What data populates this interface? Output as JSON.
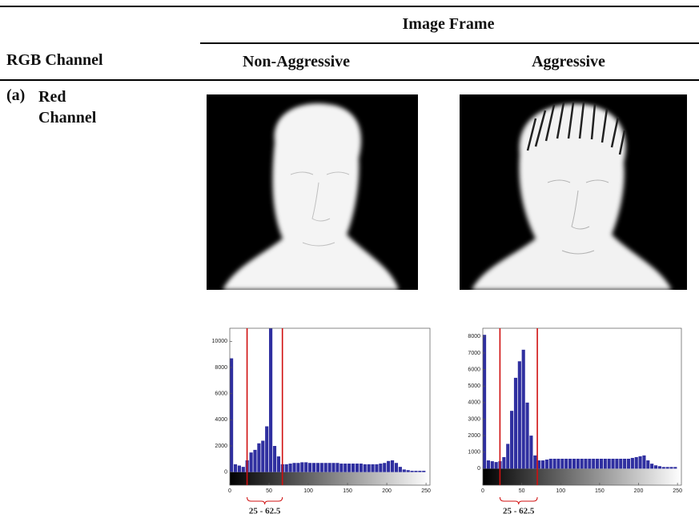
{
  "header": {
    "group_title": "Image Frame",
    "channel_label": "RGB Channel",
    "columns": [
      "Non-Aggressive",
      "Aggressive"
    ]
  },
  "row": {
    "marker": "(a)",
    "label": "Red Channel"
  },
  "histograms": [
    {
      "type": "bar",
      "color": "#2f2fa0",
      "bins": [
        0,
        5,
        10,
        15,
        20,
        25,
        30,
        35,
        40,
        45,
        50,
        55,
        60,
        65,
        70,
        75,
        80,
        85,
        90,
        95,
        100,
        105,
        110,
        115,
        120,
        125,
        130,
        135,
        140,
        145,
        150,
        155,
        160,
        165,
        170,
        175,
        180,
        185,
        190,
        195,
        200,
        205,
        210,
        215,
        220,
        225,
        230,
        235,
        240,
        245,
        250
      ],
      "values": [
        8700,
        600,
        500,
        400,
        900,
        1500,
        1700,
        2200,
        2400,
        3500,
        11000,
        2000,
        1200,
        600,
        600,
        650,
        700,
        700,
        750,
        750,
        700,
        700,
        700,
        700,
        700,
        700,
        700,
        700,
        650,
        650,
        650,
        650,
        650,
        650,
        600,
        600,
        600,
        600,
        650,
        700,
        850,
        900,
        700,
        400,
        200,
        150,
        100,
        100,
        100,
        100
      ],
      "xlim": [
        0,
        255
      ],
      "xticks": [
        0,
        50,
        100,
        150,
        200,
        250
      ],
      "ylim": [
        -1000,
        11000
      ],
      "yticks": [
        0,
        2000,
        4000,
        6000,
        8000,
        10000
      ],
      "threshold_lines": [
        22,
        67
      ],
      "line_color": "#d01010",
      "range_label": "25 - 62.5"
    },
    {
      "type": "bar",
      "color": "#2f2fa0",
      "bins": [
        0,
        5,
        10,
        15,
        20,
        25,
        30,
        35,
        40,
        45,
        50,
        55,
        60,
        65,
        70,
        75,
        80,
        85,
        90,
        95,
        100,
        105,
        110,
        115,
        120,
        125,
        130,
        135,
        140,
        145,
        150,
        155,
        160,
        165,
        170,
        175,
        180,
        185,
        190,
        195,
        200,
        205,
        210,
        215,
        220,
        225,
        230,
        235,
        240,
        245,
        250
      ],
      "values": [
        8100,
        500,
        450,
        400,
        450,
        700,
        1500,
        3500,
        5500,
        6500,
        7200,
        4000,
        2000,
        800,
        500,
        500,
        550,
        600,
        600,
        600,
        600,
        600,
        600,
        600,
        600,
        600,
        600,
        600,
        600,
        600,
        600,
        600,
        600,
        600,
        600,
        600,
        600,
        600,
        650,
        700,
        750,
        800,
        500,
        300,
        200,
        150,
        100,
        100,
        100,
        100
      ],
      "xlim": [
        0,
        255
      ],
      "xticks": [
        0,
        50,
        100,
        150,
        200,
        250
      ],
      "ylim": [
        -1000,
        8500
      ],
      "yticks": [
        0,
        1000,
        2000,
        3000,
        4000,
        5000,
        6000,
        7000,
        8000
      ],
      "threshold_lines": [
        22,
        70
      ],
      "line_color": "#d01010",
      "range_label": "25 - 62.5"
    }
  ]
}
